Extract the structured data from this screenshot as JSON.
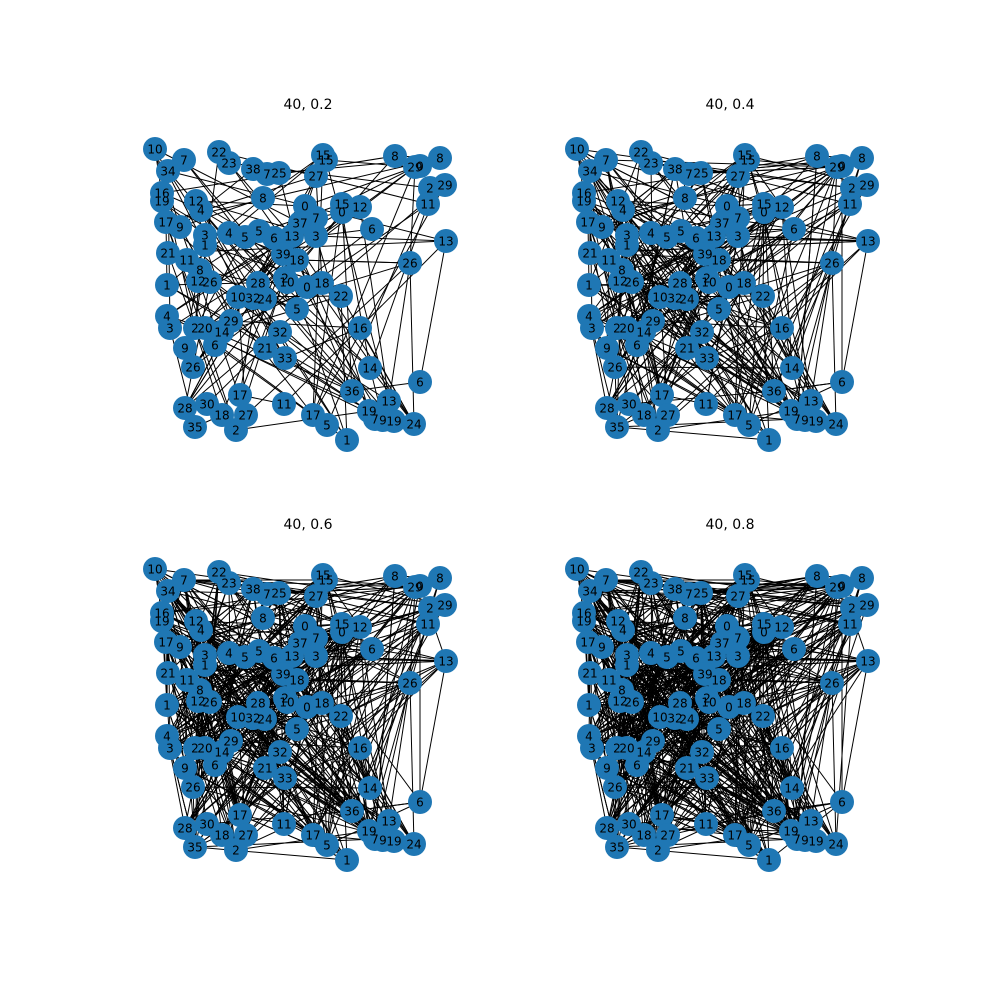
{
  "panels": [
    {
      "title": "40, 0.2"
    },
    {
      "title": "40, 0.4"
    },
    {
      "title": "40, 0.6"
    },
    {
      "title": "40, 0.8"
    }
  ],
  "node_labels": [
    "10",
    "7",
    "34",
    "22",
    "23",
    "38",
    "7",
    "25",
    "15",
    "15",
    "27",
    "8",
    "29",
    "0",
    "8",
    "2",
    "29",
    "11",
    "16",
    "19",
    "12",
    "4",
    "8",
    "0",
    "7",
    "15",
    "0",
    "12",
    "37",
    "17",
    "9",
    "3",
    "1",
    "4",
    "5",
    "5",
    "6",
    "13",
    "3",
    "6",
    "13",
    "21",
    "11",
    "39",
    "18",
    "26",
    "8",
    "12",
    "26",
    "28",
    "2",
    "10",
    "0",
    "18",
    "1",
    "10",
    "32",
    "24",
    "22",
    "5",
    "4",
    "3",
    "2",
    "20",
    "14",
    "29",
    "16",
    "32",
    "9",
    "6",
    "21",
    "33",
    "26",
    "14",
    "36",
    "6",
    "28",
    "30",
    "17",
    "27",
    "18",
    "11",
    "17",
    "5",
    "1",
    "35",
    "2",
    "19",
    "13",
    "7",
    "9",
    "19",
    "24"
  ]
}
